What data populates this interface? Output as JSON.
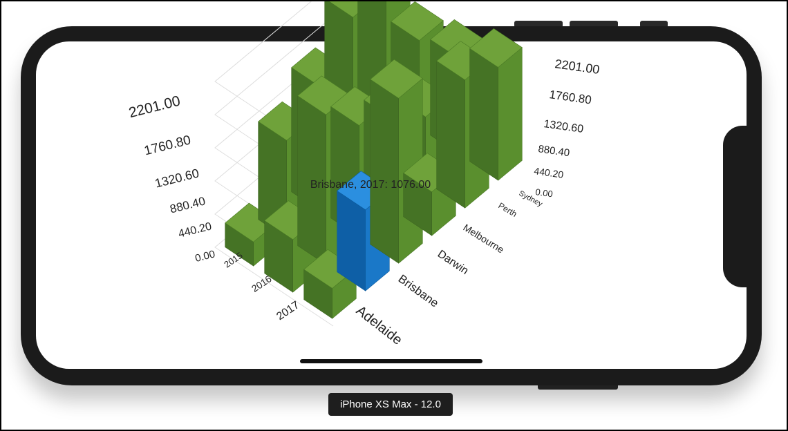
{
  "device": {
    "label": "iPhone XS Max - 12.0"
  },
  "colors": {
    "bar": "#5a8f2e",
    "bar_top": "#6fa23a",
    "bar_side": "#457325",
    "highlight": "#1a78c8",
    "highlight_top": "#2b8fe0",
    "highlight_side": "#0e5fa6",
    "grid": "#dddddd"
  },
  "tooltip": {
    "text": "Brisbane, 2017: 1076.00"
  },
  "chart_data": {
    "type": "bar",
    "variant": "3d",
    "categories": [
      "Adelaide",
      "Brisbane",
      "Darwin",
      "Melbourne",
      "Perth",
      "Sydney"
    ],
    "rows": [
      "2015",
      "2016",
      "2017"
    ],
    "ylim": [
      0,
      2201
    ],
    "ticks": [
      "0.00",
      "440.20",
      "880.40",
      "1320.60",
      "1760.80",
      "2201.00"
    ],
    "series": [
      {
        "name": "2015",
        "values": [
          320,
          1300,
          1650,
          2201,
          2060,
          1160
        ]
      },
      {
        "name": "2016",
        "values": [
          700,
          1990,
          1480,
          1200,
          860,
          1270
        ]
      },
      {
        "name": "2017",
        "values": [
          400,
          1076,
          2190,
          580,
          1700,
          1500
        ]
      }
    ],
    "highlight": {
      "category": "Brisbane",
      "row": "2017",
      "value": 1076
    }
  }
}
